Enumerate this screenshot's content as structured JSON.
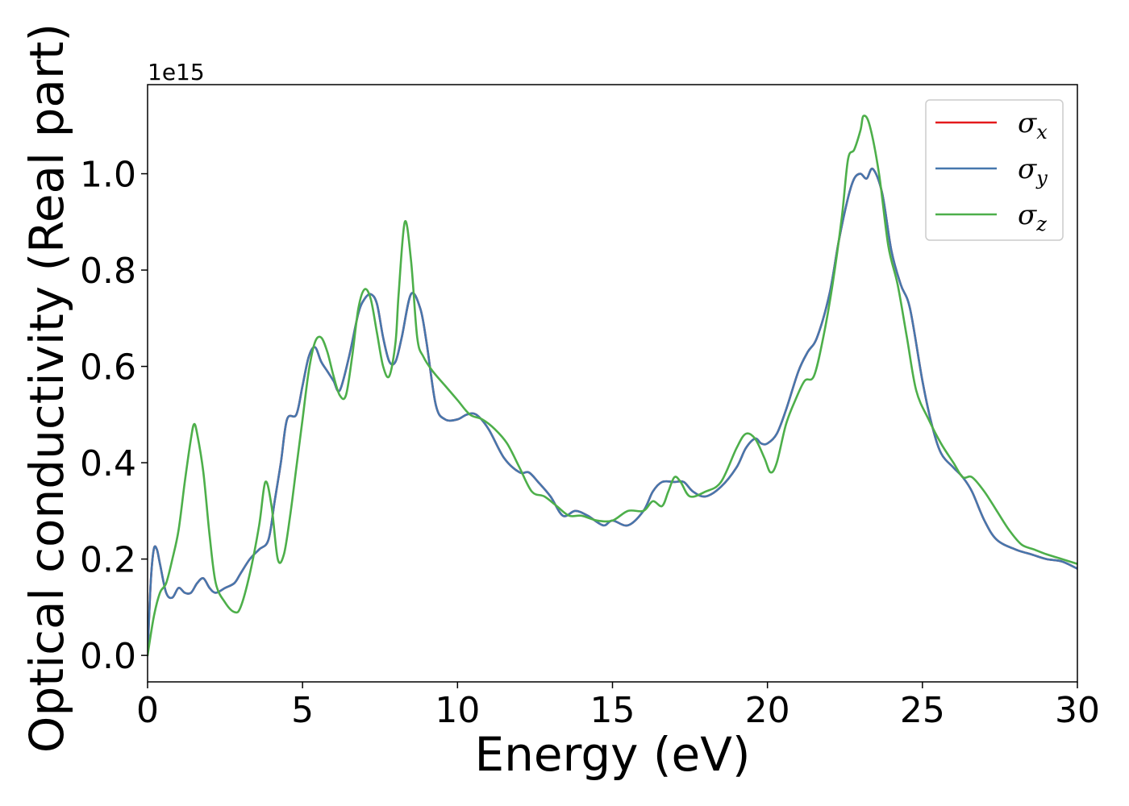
{
  "chart_data": {
    "type": "line",
    "title": "",
    "xlabel": "Energy (eV)",
    "ylabel": "Optical conductivity (Real part)",
    "y_offset_text": "1e15",
    "xlim": [
      0,
      30
    ],
    "ylim": [
      -0.055,
      1.185
    ],
    "x_ticks": [
      0,
      5,
      10,
      15,
      20,
      25,
      30
    ],
    "x_tick_labels": [
      "0",
      "5",
      "10",
      "15",
      "20",
      "25",
      "30"
    ],
    "y_ticks": [
      0.0,
      0.2,
      0.4,
      0.6,
      0.8,
      1.0
    ],
    "y_tick_labels": [
      "0.0",
      "0.2",
      "0.4",
      "0.6",
      "0.8",
      "1.0"
    ],
    "grid": false,
    "legend_position": "top-right",
    "series": [
      {
        "name": "σx",
        "symbol": "σ",
        "subscript": "x",
        "color": "#e41a1c",
        "x": [
          0,
          0.1,
          0.2,
          0.3,
          0.4,
          0.6,
          0.8,
          1.0,
          1.2,
          1.4,
          1.6,
          1.8,
          2.0,
          2.2,
          2.5,
          2.8,
          3.0,
          3.3,
          3.6,
          3.9,
          4.1,
          4.3,
          4.5,
          4.8,
          5.0,
          5.2,
          5.4,
          5.6,
          5.8,
          6.0,
          6.2,
          6.5,
          6.8,
          7.0,
          7.2,
          7.4,
          7.6,
          7.8,
          8.0,
          8.2,
          8.5,
          8.8,
          9.0,
          9.3,
          9.6,
          10.0,
          10.3,
          10.6,
          11.0,
          11.5,
          12.0,
          12.3,
          12.6,
          13.0,
          13.4,
          13.8,
          14.2,
          14.7,
          15.0,
          15.5,
          16.0,
          16.3,
          16.6,
          17.0,
          17.3,
          17.6,
          18.0,
          18.5,
          19.0,
          19.3,
          19.6,
          19.8,
          20.0,
          20.3,
          20.6,
          21.0,
          21.3,
          21.6,
          22.0,
          22.3,
          22.6,
          22.8,
          23.0,
          23.2,
          23.4,
          23.7,
          24.0,
          24.3,
          24.6,
          25.0,
          25.3,
          25.6,
          26.0,
          26.3,
          26.6,
          27.0,
          27.4,
          28.0,
          28.5,
          29.0,
          29.5,
          30.0
        ],
        "y": [
          0.0,
          0.15,
          0.22,
          0.22,
          0.19,
          0.13,
          0.12,
          0.14,
          0.13,
          0.13,
          0.15,
          0.16,
          0.14,
          0.13,
          0.14,
          0.15,
          0.17,
          0.2,
          0.22,
          0.24,
          0.32,
          0.4,
          0.49,
          0.5,
          0.56,
          0.62,
          0.64,
          0.61,
          0.59,
          0.57,
          0.55,
          0.62,
          0.71,
          0.74,
          0.75,
          0.73,
          0.66,
          0.61,
          0.61,
          0.66,
          0.75,
          0.72,
          0.65,
          0.52,
          0.49,
          0.49,
          0.5,
          0.5,
          0.47,
          0.41,
          0.38,
          0.38,
          0.36,
          0.33,
          0.29,
          0.3,
          0.29,
          0.27,
          0.28,
          0.27,
          0.3,
          0.34,
          0.36,
          0.36,
          0.36,
          0.34,
          0.33,
          0.35,
          0.39,
          0.43,
          0.45,
          0.44,
          0.44,
          0.46,
          0.51,
          0.59,
          0.63,
          0.66,
          0.75,
          0.86,
          0.95,
          0.99,
          1.0,
          0.99,
          1.01,
          0.96,
          0.84,
          0.77,
          0.72,
          0.57,
          0.48,
          0.42,
          0.39,
          0.37,
          0.34,
          0.28,
          0.24,
          0.22,
          0.21,
          0.2,
          0.195,
          0.18
        ]
      },
      {
        "name": "σy",
        "symbol": "σ",
        "subscript": "y",
        "color": "#4677ad",
        "x": [
          0,
          0.1,
          0.2,
          0.3,
          0.4,
          0.6,
          0.8,
          1.0,
          1.2,
          1.4,
          1.6,
          1.8,
          2.0,
          2.2,
          2.5,
          2.8,
          3.0,
          3.3,
          3.6,
          3.9,
          4.1,
          4.3,
          4.5,
          4.8,
          5.0,
          5.2,
          5.4,
          5.6,
          5.8,
          6.0,
          6.2,
          6.5,
          6.8,
          7.0,
          7.2,
          7.4,
          7.6,
          7.8,
          8.0,
          8.2,
          8.5,
          8.8,
          9.0,
          9.3,
          9.6,
          10.0,
          10.3,
          10.6,
          11.0,
          11.5,
          12.0,
          12.3,
          12.6,
          13.0,
          13.4,
          13.8,
          14.2,
          14.7,
          15.0,
          15.5,
          16.0,
          16.3,
          16.6,
          17.0,
          17.3,
          17.6,
          18.0,
          18.5,
          19.0,
          19.3,
          19.6,
          19.8,
          20.0,
          20.3,
          20.6,
          21.0,
          21.3,
          21.6,
          22.0,
          22.3,
          22.6,
          22.8,
          23.0,
          23.2,
          23.4,
          23.7,
          24.0,
          24.3,
          24.6,
          25.0,
          25.3,
          25.6,
          26.0,
          26.3,
          26.6,
          27.0,
          27.4,
          28.0,
          28.5,
          29.0,
          29.5,
          30.0
        ],
        "y": [
          0.0,
          0.15,
          0.22,
          0.22,
          0.19,
          0.13,
          0.12,
          0.14,
          0.13,
          0.13,
          0.15,
          0.16,
          0.14,
          0.13,
          0.14,
          0.15,
          0.17,
          0.2,
          0.22,
          0.24,
          0.32,
          0.4,
          0.49,
          0.5,
          0.56,
          0.62,
          0.64,
          0.61,
          0.59,
          0.57,
          0.55,
          0.62,
          0.71,
          0.74,
          0.75,
          0.73,
          0.66,
          0.61,
          0.61,
          0.66,
          0.75,
          0.72,
          0.65,
          0.52,
          0.49,
          0.49,
          0.5,
          0.5,
          0.47,
          0.41,
          0.38,
          0.38,
          0.36,
          0.33,
          0.29,
          0.3,
          0.29,
          0.27,
          0.28,
          0.27,
          0.3,
          0.34,
          0.36,
          0.36,
          0.36,
          0.34,
          0.33,
          0.35,
          0.39,
          0.43,
          0.45,
          0.44,
          0.44,
          0.46,
          0.51,
          0.59,
          0.63,
          0.66,
          0.75,
          0.86,
          0.95,
          0.99,
          1.0,
          0.99,
          1.01,
          0.96,
          0.84,
          0.77,
          0.72,
          0.57,
          0.48,
          0.42,
          0.39,
          0.37,
          0.34,
          0.28,
          0.24,
          0.22,
          0.21,
          0.2,
          0.195,
          0.18
        ]
      },
      {
        "name": "σz",
        "symbol": "σ",
        "subscript": "z",
        "color": "#4daf4a",
        "x": [
          0,
          0.2,
          0.4,
          0.6,
          0.8,
          1.0,
          1.2,
          1.4,
          1.5,
          1.6,
          1.8,
          2.0,
          2.2,
          2.5,
          2.8,
          3.0,
          3.3,
          3.6,
          3.8,
          4.0,
          4.2,
          4.4,
          4.6,
          4.8,
          5.0,
          5.2,
          5.4,
          5.6,
          5.8,
          6.0,
          6.2,
          6.4,
          6.6,
          6.8,
          7.0,
          7.2,
          7.4,
          7.6,
          7.8,
          8.0,
          8.1,
          8.3,
          8.5,
          8.7,
          8.9,
          9.2,
          9.6,
          10.0,
          10.4,
          10.8,
          11.2,
          11.6,
          12.0,
          12.4,
          12.8,
          13.2,
          13.6,
          14.0,
          14.5,
          15.0,
          15.5,
          16.0,
          16.3,
          16.6,
          16.8,
          17.0,
          17.2,
          17.5,
          18.0,
          18.5,
          19.0,
          19.3,
          19.6,
          19.9,
          20.1,
          20.3,
          20.6,
          20.9,
          21.2,
          21.5,
          21.8,
          22.1,
          22.4,
          22.6,
          22.8,
          23.0,
          23.1,
          23.3,
          23.6,
          23.9,
          24.2,
          24.5,
          24.8,
          25.2,
          25.6,
          26.0,
          26.3,
          26.6,
          27.0,
          27.4,
          27.8,
          28.2,
          28.6,
          29.0,
          29.5,
          30.0
        ],
        "y": [
          0.0,
          0.08,
          0.13,
          0.15,
          0.2,
          0.26,
          0.36,
          0.45,
          0.48,
          0.46,
          0.38,
          0.25,
          0.15,
          0.11,
          0.09,
          0.1,
          0.17,
          0.27,
          0.36,
          0.31,
          0.2,
          0.21,
          0.29,
          0.39,
          0.49,
          0.59,
          0.65,
          0.66,
          0.63,
          0.58,
          0.54,
          0.54,
          0.62,
          0.72,
          0.76,
          0.74,
          0.67,
          0.6,
          0.58,
          0.65,
          0.75,
          0.9,
          0.82,
          0.66,
          0.62,
          0.59,
          0.56,
          0.53,
          0.5,
          0.49,
          0.47,
          0.44,
          0.39,
          0.34,
          0.33,
          0.31,
          0.29,
          0.29,
          0.28,
          0.28,
          0.3,
          0.3,
          0.32,
          0.31,
          0.34,
          0.37,
          0.36,
          0.33,
          0.34,
          0.36,
          0.43,
          0.46,
          0.45,
          0.41,
          0.38,
          0.4,
          0.48,
          0.53,
          0.57,
          0.58,
          0.66,
          0.77,
          0.91,
          1.03,
          1.05,
          1.09,
          1.12,
          1.1,
          1.0,
          0.85,
          0.77,
          0.66,
          0.55,
          0.49,
          0.44,
          0.4,
          0.37,
          0.37,
          0.34,
          0.3,
          0.26,
          0.23,
          0.22,
          0.21,
          0.2,
          0.19
        ]
      }
    ]
  }
}
